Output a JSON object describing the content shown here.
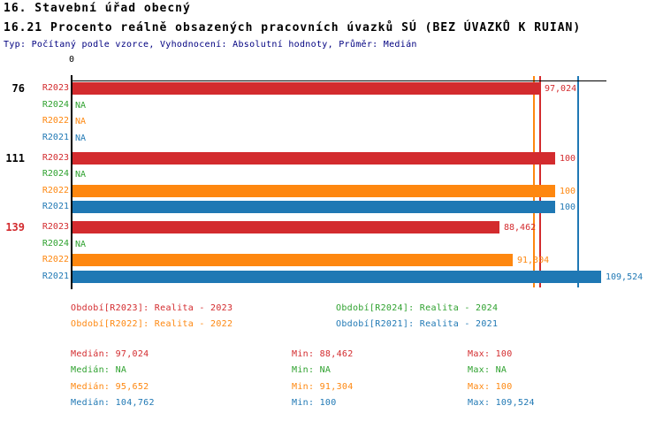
{
  "header": {
    "title1": "16. Stavební úřad obecný",
    "title2": "16.21 Procento reálně obsazených pracovních úvazků SÚ (BEZ ÚVAZKŮ K RUIAN)",
    "subtitle": "Typ: Počítaný podle vzorce, Vyhodnocení: Absolutní hodnoty, Průměr: Medián"
  },
  "colors": {
    "R2023": "#d32b2e",
    "R2024": "#2ea12e",
    "R2022": "#fe870f",
    "R2021": "#1f78b4",
    "axis": "#000000",
    "subtitle": "#000080",
    "highlight_group": "#d32b2e",
    "normal_group": "#000000"
  },
  "chart_data": {
    "type": "bar",
    "orientation": "horizontal",
    "xlabel": "",
    "ylabel": "",
    "axis_zero_label": "0",
    "xlim": [
      0,
      110.7
    ],
    "series_names": [
      "R2023",
      "R2024",
      "R2022",
      "R2021"
    ],
    "groups": [
      {
        "id": "76",
        "highlight": false,
        "rows": [
          {
            "series": "R2023",
            "value": 97.024,
            "label": "97,024"
          },
          {
            "series": "R2024",
            "value": null,
            "label": "NA"
          },
          {
            "series": "R2022",
            "value": null,
            "label": "NA"
          },
          {
            "series": "R2021",
            "value": null,
            "label": "NA"
          }
        ]
      },
      {
        "id": "111",
        "highlight": false,
        "rows": [
          {
            "series": "R2023",
            "value": 100,
            "label": "100"
          },
          {
            "series": "R2024",
            "value": null,
            "label": "NA"
          },
          {
            "series": "R2022",
            "value": 100,
            "label": "100"
          },
          {
            "series": "R2021",
            "value": 100,
            "label": "100"
          }
        ]
      },
      {
        "id": "139",
        "highlight": true,
        "rows": [
          {
            "series": "R2023",
            "value": 88.462,
            "label": "88,462"
          },
          {
            "series": "R2024",
            "value": null,
            "label": "NA"
          },
          {
            "series": "R2022",
            "value": 91.304,
            "label": "91,304"
          },
          {
            "series": "R2021",
            "value": 109.524,
            "label": "109,524"
          }
        ]
      }
    ],
    "median_lines": [
      {
        "series": "R2022",
        "value": 95.652
      },
      {
        "series": "R2023",
        "value": 97.024
      },
      {
        "series": "R2021",
        "value": 104.762
      }
    ]
  },
  "legend": [
    {
      "series": "R2023",
      "label": "Období[R2023]: Realita - 2023"
    },
    {
      "series": "R2024",
      "label": "Období[R2024]: Realita - 2024"
    },
    {
      "series": "R2022",
      "label": "Období[R2022]: Realita - 2022"
    },
    {
      "series": "R2021",
      "label": "Období[R2021]: Realita - 2021"
    }
  ],
  "stats": [
    {
      "series": "R2023",
      "median": "Medián: 97,024",
      "min": "Min: 88,462",
      "max": "Max: 100"
    },
    {
      "series": "R2024",
      "median": "Medián: NA",
      "min": "Min: NA",
      "max": "Max: NA"
    },
    {
      "series": "R2022",
      "median": "Medián: 95,652",
      "min": "Min: 91,304",
      "max": "Max: 100"
    },
    {
      "series": "R2021",
      "median": "Medián: 104,762",
      "min": "Min: 100",
      "max": "Max: 109,524"
    }
  ]
}
